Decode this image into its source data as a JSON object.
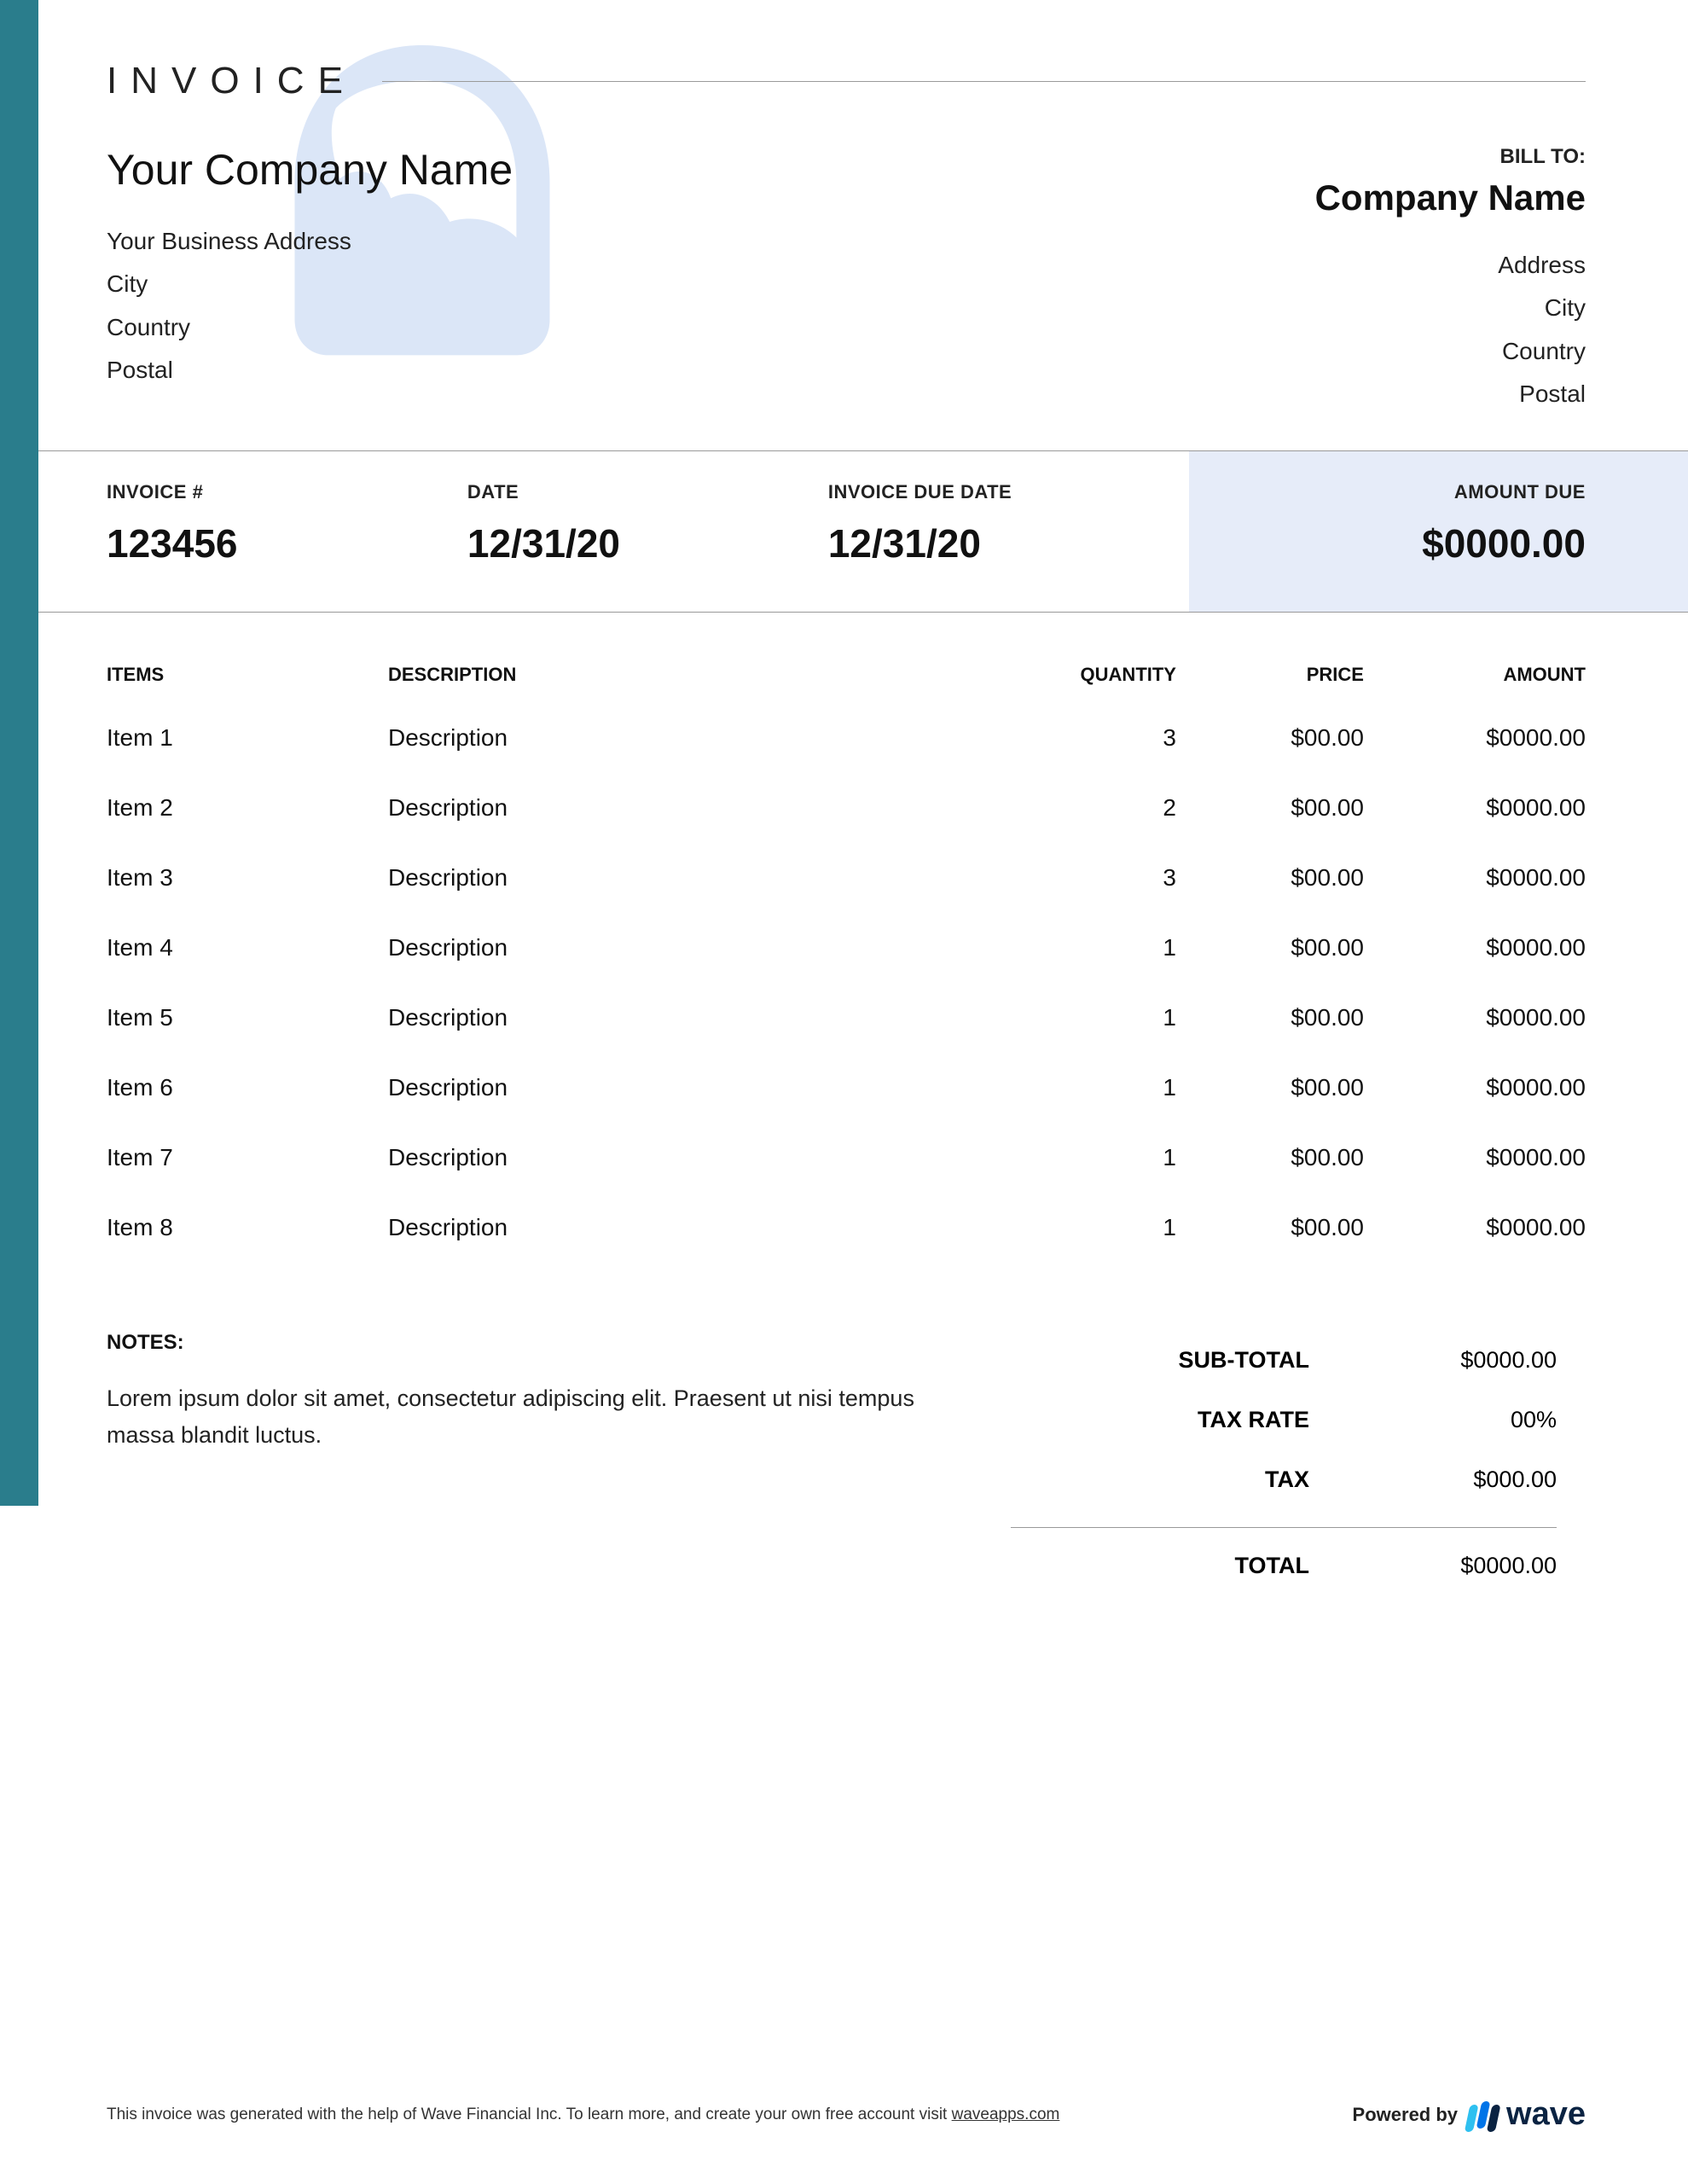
{
  "colors": {
    "sidebar": "#2a7d8c",
    "amount_due_bg": "#e6ecf9",
    "watermark": "#dbe6f7",
    "text": "#111111",
    "rule": "#999999",
    "wave_bar1": "#2ec0f0",
    "wave_bar2": "#0074e8",
    "wave_bar3": "#0a2342",
    "wave_text": "#0a2342"
  },
  "document": {
    "title": "INVOICE"
  },
  "from": {
    "company": "Your Company Name",
    "address": "Your Business Address",
    "city": "City",
    "country": "Country",
    "postal": "Postal"
  },
  "to": {
    "label": "BILL TO:",
    "company": "Company Name",
    "address": "Address",
    "city": "City",
    "country": "Country",
    "postal": "Postal"
  },
  "meta": {
    "invoice_number_label": "INVOICE #",
    "invoice_number": "123456",
    "date_label": "DATE",
    "date": "12/31/20",
    "due_date_label": "INVOICE DUE DATE",
    "due_date": "12/31/20",
    "amount_due_label": "AMOUNT DUE",
    "amount_due": "$0000.00"
  },
  "items_header": {
    "items": "ITEMS",
    "description": "DESCRIPTION",
    "quantity": "QUANTITY",
    "price": "PRICE",
    "amount": "AMOUNT"
  },
  "items": [
    {
      "name": "Item 1",
      "description": "Description",
      "quantity": "3",
      "price": "$00.00",
      "amount": "$0000.00"
    },
    {
      "name": "Item 2",
      "description": "Description",
      "quantity": "2",
      "price": "$00.00",
      "amount": "$0000.00"
    },
    {
      "name": "Item 3",
      "description": "Description",
      "quantity": "3",
      "price": "$00.00",
      "amount": "$0000.00"
    },
    {
      "name": "Item 4",
      "description": "Description",
      "quantity": "1",
      "price": "$00.00",
      "amount": "$0000.00"
    },
    {
      "name": "Item 5",
      "description": "Description",
      "quantity": "1",
      "price": "$00.00",
      "amount": "$0000.00"
    },
    {
      "name": "Item 6",
      "description": "Description",
      "quantity": "1",
      "price": "$00.00",
      "amount": "$0000.00"
    },
    {
      "name": "Item 7",
      "description": "Description",
      "quantity": "1",
      "price": "$00.00",
      "amount": "$0000.00"
    },
    {
      "name": "Item 8",
      "description": "Description",
      "quantity": "1",
      "price": "$00.00",
      "amount": "$0000.00"
    }
  ],
  "notes": {
    "label": "NOTES:",
    "text": "Lorem ipsum dolor sit amet, consectetur adipiscing elit. Praesent ut nisi tempus massa blandit luctus."
  },
  "totals": {
    "subtotal_label": "SUB-TOTAL",
    "subtotal": "$0000.00",
    "tax_rate_label": "TAX RATE",
    "tax_rate": "00%",
    "tax_label": "TAX",
    "tax": "$000.00",
    "total_label": "TOTAL",
    "total": "$0000.00"
  },
  "footer": {
    "text_prefix": "This invoice was generated with the help of Wave Financial Inc. To learn more, and create your own free account visit ",
    "link_text": "waveapps.com",
    "powered_by": "Powered by",
    "brand": "wave"
  }
}
